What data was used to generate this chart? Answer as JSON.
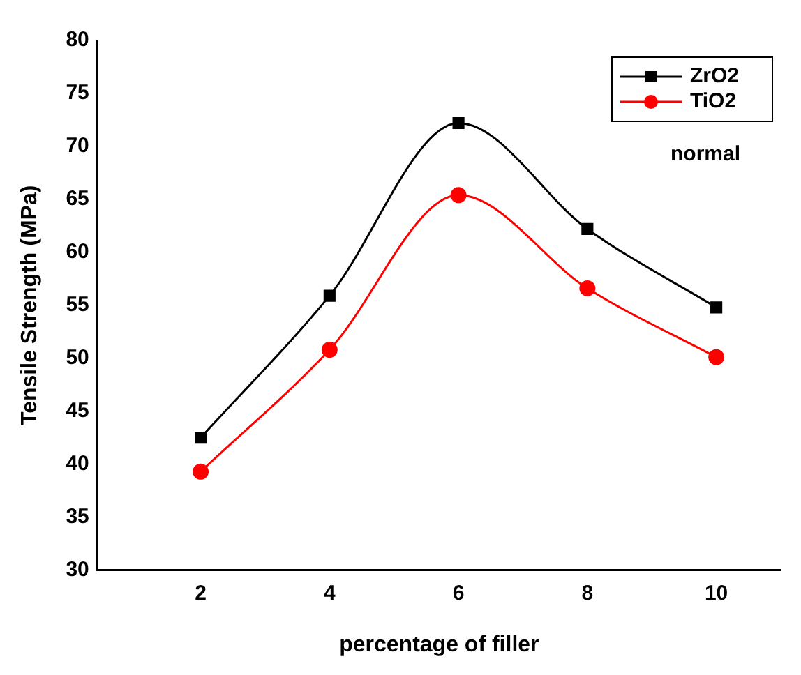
{
  "chart_data": {
    "type": "line",
    "xlabel": "percentage of filler",
    "ylabel": "Tensile Strength (MPa)",
    "x": [
      2,
      4,
      6,
      8,
      10
    ],
    "series": [
      {
        "name": "ZrO2",
        "color": "#000000",
        "marker": "square",
        "values": [
          42.5,
          55.9,
          72.2,
          62.2,
          54.8
        ]
      },
      {
        "name": "TiO2",
        "color": "#ff0000",
        "marker": "circle",
        "values": [
          39.3,
          50.8,
          65.4,
          56.6,
          50.1
        ]
      }
    ],
    "xlim": [
      0.4,
      11
    ],
    "xticks": [
      2,
      4,
      6,
      8,
      10
    ],
    "ylim": [
      30,
      80
    ],
    "yticks": [
      30,
      35,
      40,
      45,
      50,
      55,
      60,
      65,
      70,
      75,
      80
    ],
    "grid": false,
    "legend": "top right",
    "annotations": [
      "normal"
    ]
  }
}
